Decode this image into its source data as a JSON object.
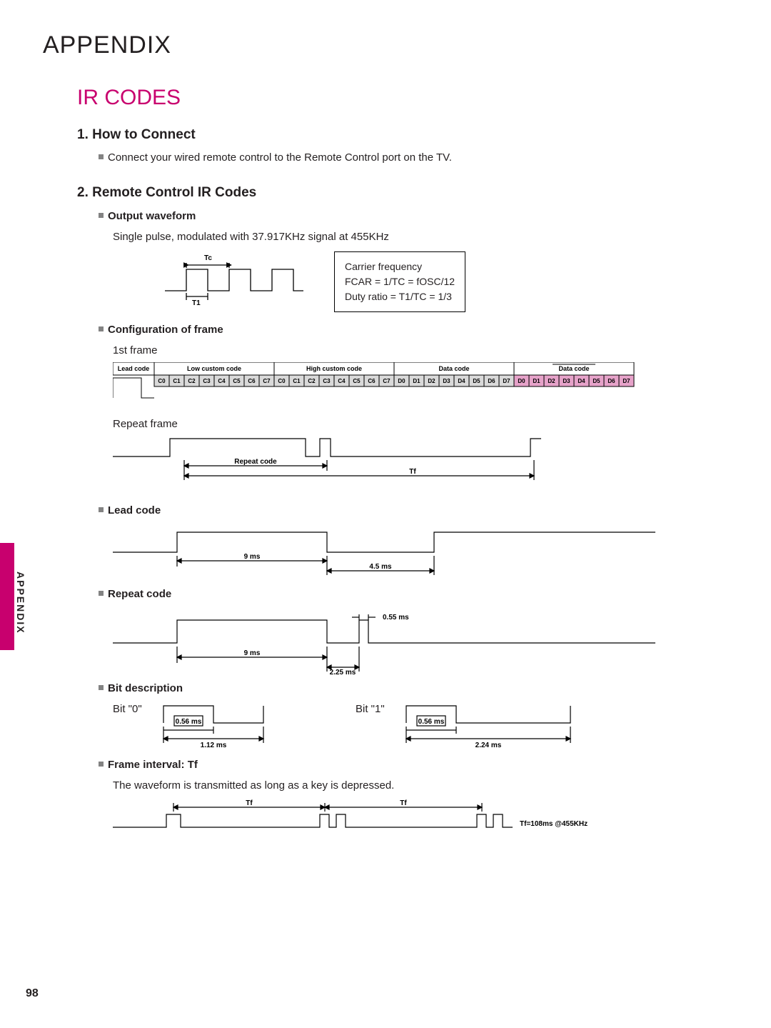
{
  "title": "APPENDIX",
  "section_title": "IR CODES",
  "s1": {
    "heading": "1. How to Connect",
    "bullet": "Connect your wired remote control to the Remote Control port on the TV."
  },
  "s2": {
    "heading": "2. Remote Control IR Codes",
    "output_wave": "Output waveform",
    "output_desc": "Single pulse, modulated with 37.917KHz signal at 455KHz",
    "tc": "Tc",
    "t1": "T1",
    "box1": "Carrier frequency",
    "box2": "FCAR = 1/TC = fOSC/12",
    "box3": "Duty ratio = T1/TC = 1/3",
    "config": "Configuration of frame",
    "frame1": "1st frame",
    "lead_code": "Lead code",
    "low_custom": "Low custom code",
    "high_custom": "High custom code",
    "data_code": "Data code",
    "data_code2": "Data code",
    "bits_c": [
      "C0",
      "C1",
      "C2",
      "C3",
      "C4",
      "C5",
      "C6",
      "C7"
    ],
    "bits_d": [
      "D0",
      "D1",
      "D2",
      "D3",
      "D4",
      "D5",
      "D6",
      "D7"
    ],
    "repeat_frame": "Repeat frame",
    "repeat_code_lbl": "Repeat  code",
    "tf": "Tf",
    "lead_code_h": "Lead code",
    "t9ms": "9 ms",
    "t45ms": "4.5 ms",
    "repeat_code_h": "Repeat code",
    "t055": "0.55 ms",
    "t225": "2.25 ms",
    "bit_desc": "Bit description",
    "bit0": "Bit \"0\"",
    "bit1": "Bit \"1\"",
    "t056": "0.56 ms",
    "t112": "1.12 ms",
    "t224": "2.24 ms",
    "frame_int": "Frame interval: Tf",
    "frame_int_desc": "The waveform is transmitted as long as a key is depressed.",
    "tf_eq": "Tf=108ms @455KHz"
  },
  "side": "APPENDIX",
  "page": "98",
  "colors": {
    "accent": "#c8006e",
    "pink_fill": "#e6a2c9",
    "gray_fill": "#d9d9d9",
    "line": "#000000"
  }
}
